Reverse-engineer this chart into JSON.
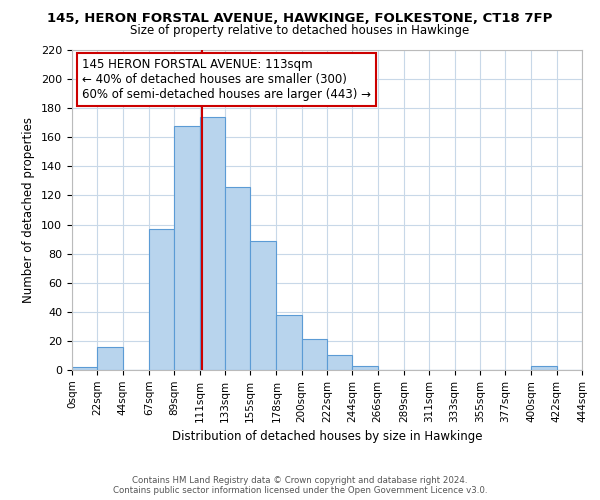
{
  "title_line1": "145, HERON FORSTAL AVENUE, HAWKINGE, FOLKESTONE, CT18 7FP",
  "title_line2": "Size of property relative to detached houses in Hawkinge",
  "xlabel": "Distribution of detached houses by size in Hawkinge",
  "ylabel": "Number of detached properties",
  "bar_color": "#b8d4ed",
  "bar_edge_color": "#5b9bd5",
  "bin_edges": [
    0,
    22,
    44,
    67,
    89,
    111,
    133,
    155,
    178,
    200,
    222,
    244,
    266,
    289,
    311,
    333,
    355,
    377,
    400,
    422,
    444
  ],
  "bin_labels": [
    "0sqm",
    "22sqm",
    "44sqm",
    "67sqm",
    "89sqm",
    "111sqm",
    "133sqm",
    "155sqm",
    "178sqm",
    "200sqm",
    "222sqm",
    "244sqm",
    "266sqm",
    "289sqm",
    "311sqm",
    "333sqm",
    "355sqm",
    "377sqm",
    "400sqm",
    "422sqm",
    "444sqm"
  ],
  "counts": [
    2,
    16,
    0,
    97,
    168,
    174,
    126,
    89,
    38,
    21,
    10,
    3,
    0,
    0,
    0,
    0,
    0,
    0,
    3,
    0
  ],
  "ylim": [
    0,
    220
  ],
  "yticks": [
    0,
    20,
    40,
    60,
    80,
    100,
    120,
    140,
    160,
    180,
    200,
    220
  ],
  "vline_x": 113,
  "vline_color": "#cc0000",
  "annotation_text": "145 HERON FORSTAL AVENUE: 113sqm\n← 40% of detached houses are smaller (300)\n60% of semi-detached houses are larger (443) →",
  "footer_line1": "Contains HM Land Registry data © Crown copyright and database right 2024.",
  "footer_line2": "Contains public sector information licensed under the Open Government Licence v3.0.",
  "background_color": "#ffffff",
  "grid_color": "#c8d8e8"
}
